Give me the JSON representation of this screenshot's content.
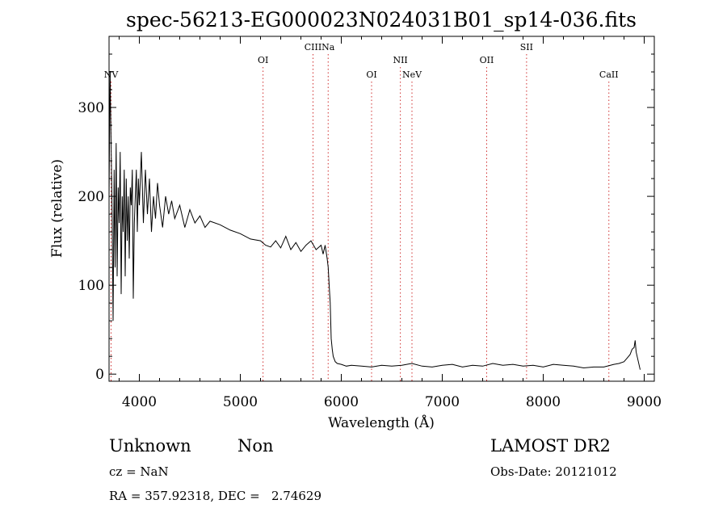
{
  "chart_data": {
    "type": "line",
    "title": "spec-56213-EG000023N024031B01_sp14-036.fits",
    "xlabel": "Wavelength (Å)",
    "ylabel": "Flux (relative)",
    "xlim": [
      3700,
      9100
    ],
    "ylim": [
      -8,
      380
    ],
    "x_ticks": [
      4000,
      5000,
      6000,
      7000,
      8000,
      9000
    ],
    "y_ticks": [
      0,
      100,
      200,
      300
    ],
    "grid": false,
    "series": [
      {
        "x": [
          3700,
          3710,
          3720,
          3730,
          3740,
          3750,
          3760,
          3770,
          3780,
          3790,
          3800,
          3810,
          3820,
          3830,
          3840,
          3850,
          3860,
          3870,
          3880,
          3890,
          3900,
          3910,
          3920,
          3930,
          3940,
          3950,
          3960,
          3970,
          3980,
          3990,
          4000,
          4020,
          4040,
          4060,
          4080,
          4100,
          4120,
          4140,
          4160,
          4180,
          4200,
          4230,
          4260,
          4290,
          4320,
          4350,
          4400,
          4450,
          4500,
          4550,
          4600,
          4650,
          4700,
          4800,
          4900,
          5000,
          5100,
          5200,
          5250,
          5300,
          5350,
          5400,
          5450,
          5500,
          5550,
          5600,
          5650,
          5700,
          5750,
          5800,
          5820,
          5840,
          5860,
          5870,
          5880,
          5890,
          5900,
          5910,
          5920,
          5940,
          5960,
          6000,
          6050,
          6100,
          6200,
          6300,
          6400,
          6500,
          6600,
          6700,
          6800,
          6900,
          7000,
          7100,
          7200,
          7300,
          7400,
          7500,
          7600,
          7700,
          7800,
          7900,
          8000,
          8100,
          8200,
          8300,
          8400,
          8500,
          8600,
          8700,
          8750,
          8800,
          8830,
          8860,
          8880,
          8900,
          8910,
          8920,
          8940,
          8960
        ],
        "values": [
          200,
          340,
          260,
          180,
          60,
          230,
          120,
          260,
          110,
          210,
          170,
          250,
          90,
          200,
          160,
          230,
          110,
          220,
          150,
          200,
          130,
          210,
          190,
          230,
          85,
          170,
          200,
          230,
          160,
          220,
          190,
          250,
          170,
          230,
          180,
          220,
          160,
          200,
          175,
          215,
          190,
          165,
          200,
          180,
          195,
          175,
          190,
          165,
          185,
          170,
          178,
          165,
          172,
          168,
          162,
          158,
          152,
          150,
          145,
          143,
          150,
          142,
          155,
          140,
          148,
          138,
          145,
          150,
          140,
          145,
          135,
          145,
          130,
          120,
          100,
          80,
          40,
          28,
          20,
          14,
          12,
          11,
          9,
          10,
          9,
          8,
          10,
          9,
          10,
          12,
          9,
          8,
          10,
          11,
          8,
          10,
          9,
          12,
          10,
          11,
          9,
          10,
          8,
          11,
          10,
          9,
          7,
          8,
          8,
          11,
          12,
          14,
          18,
          22,
          28,
          30,
          38,
          25,
          15,
          5
        ]
      }
    ],
    "lines": [
      {
        "label": "NV",
        "x": 3720,
        "tier": 2
      },
      {
        "label": "OI",
        "x": 5225,
        "tier": 1
      },
      {
        "label": "CIII",
        "x": 5720,
        "tier": 0
      },
      {
        "label": "Na",
        "x": 5870,
        "tier": 0
      },
      {
        "label": "OI",
        "x": 6300,
        "tier": 2
      },
      {
        "label": "NII",
        "x": 6585,
        "tier": 1
      },
      {
        "label": "NeV",
        "x": 6700,
        "tier": 2
      },
      {
        "label": "OII",
        "x": 7440,
        "tier": 1
      },
      {
        "label": "SII",
        "x": 7835,
        "tier": 0
      },
      {
        "label": "CaII",
        "x": 8650,
        "tier": 2
      }
    ]
  },
  "info": {
    "class": "Unknown",
    "subclass": "Non",
    "cz": "cz = NaN",
    "radec": "RA = 357.92318, DEC =   2.74629",
    "survey": "LAMOST DR2",
    "obs_date": "Obs-Date: 20121012"
  }
}
